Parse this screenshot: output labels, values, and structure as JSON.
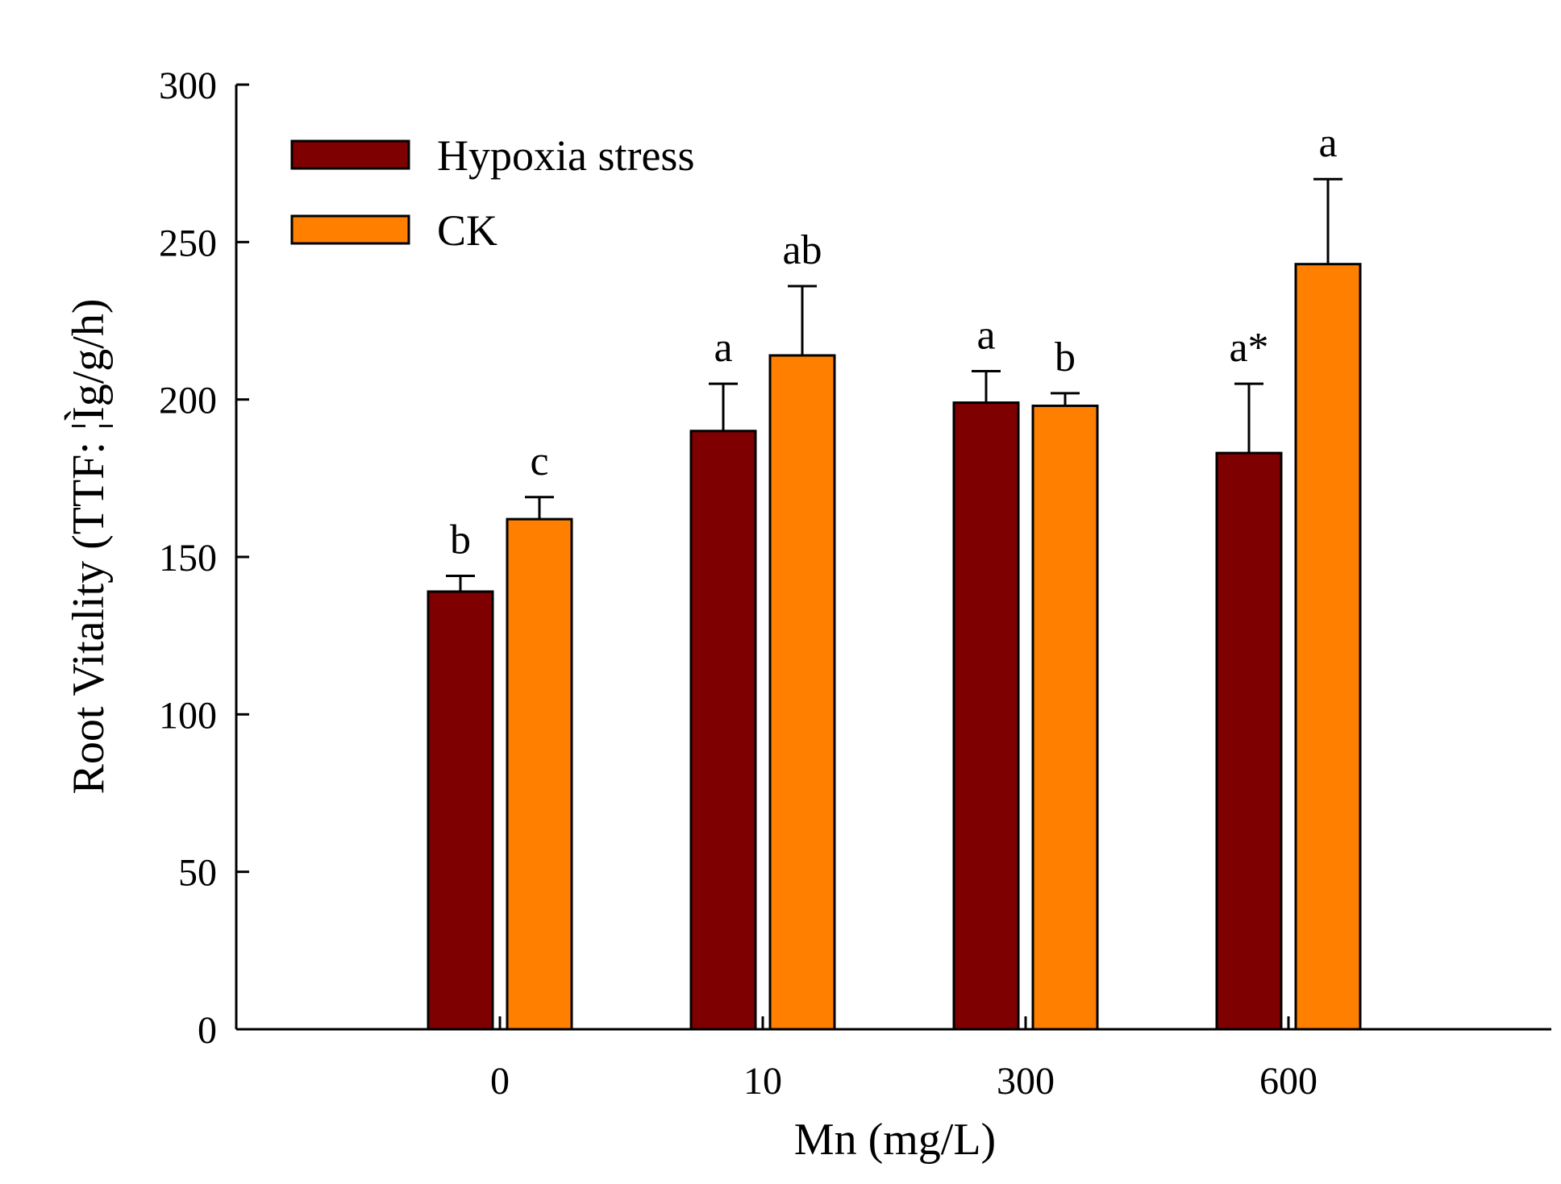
{
  "chart_data": {
    "type": "bar",
    "title": "",
    "xlabel": "Mn (mg/L)",
    "ylabel": "Root Vitality (TTF: ¦Ìg/g/h)",
    "categories": [
      "0",
      "10",
      "300",
      "600"
    ],
    "ylim": [
      0,
      300
    ],
    "yticks": [
      0,
      50,
      100,
      150,
      200,
      250,
      300
    ],
    "grid": false,
    "legend_position": "top-left",
    "series": [
      {
        "name": "Hypoxia stress",
        "color": "#7f0000",
        "values": [
          139,
          190,
          199,
          183
        ],
        "errors": [
          5,
          15,
          10,
          22
        ],
        "labels": [
          "b",
          "a",
          "a",
          "a*"
        ]
      },
      {
        "name": "CK",
        "color": "#ff8000",
        "values": [
          162,
          214,
          198,
          243
        ],
        "errors": [
          7,
          22,
          4,
          27
        ],
        "labels": [
          "c",
          "ab",
          "b",
          "a"
        ]
      }
    ]
  }
}
